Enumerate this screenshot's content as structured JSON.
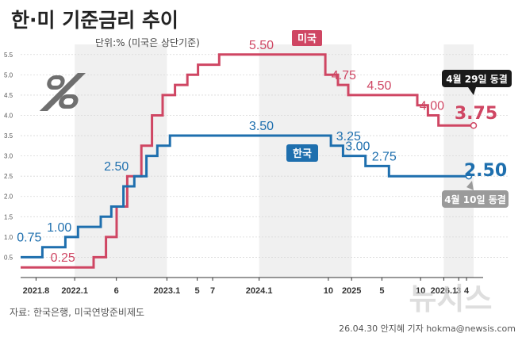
{
  "chart_data": {
    "type": "line",
    "step": true,
    "title": "한·미 기준금리 추이",
    "subtitle": "단위:% (미국은 상단기준)",
    "ylim": [
      0,
      5.75
    ],
    "y_ticks": [
      0.5,
      1.0,
      1.5,
      2.0,
      2.5,
      3.0,
      3.5,
      4.0,
      4.5,
      5.0,
      5.5
    ],
    "y_tick_labels": [
      "0.5",
      "1.0",
      "1.5",
      "2.0",
      "2.5",
      "3.0",
      "3.5",
      "4.0",
      "4.5",
      "5.0",
      "5.5"
    ],
    "x_ticks": [
      {
        "label": "2021.8",
        "date": "2021-08-01"
      },
      {
        "label": "2022.1",
        "date": "2022-01-01"
      },
      {
        "label": "6",
        "date": "2022-06-15"
      },
      {
        "label": "2023.1",
        "date": "2023-01-01"
      },
      {
        "label": "5",
        "date": "2023-05-01"
      },
      {
        "label": "7",
        "date": "2023-07-01"
      },
      {
        "label": "2024.1",
        "date": "2024-01-01"
      },
      {
        "label": "10",
        "date": "2024-10-01"
      },
      {
        "label": "2025",
        "date": "2025-01-01"
      },
      {
        "label": "5",
        "date": "2025-05-01"
      },
      {
        "label": "10",
        "date": "2025-10-01"
      },
      {
        "label": "2026.1",
        "date": "2026-01-01"
      },
      {
        "label": "3",
        "date": "2026-03-01"
      },
      {
        "label": "4",
        "date": "2026-04-01"
      }
    ],
    "series": [
      {
        "name": "미국",
        "color": "#cf4663",
        "points": [
          [
            "2021-06-01",
            0.25
          ],
          [
            "2022-03-17",
            0.5
          ],
          [
            "2022-05-05",
            1.0
          ],
          [
            "2022-06-16",
            1.75
          ],
          [
            "2022-07-28",
            2.5
          ],
          [
            "2022-09-22",
            3.25
          ],
          [
            "2022-11-03",
            4.0
          ],
          [
            "2022-12-15",
            4.5
          ],
          [
            "2023-02-02",
            4.75
          ],
          [
            "2023-03-23",
            5.0
          ],
          [
            "2023-05-04",
            5.25
          ],
          [
            "2023-07-27",
            5.5
          ],
          [
            "2024-09-19",
            5.0
          ],
          [
            "2024-11-08",
            4.75
          ],
          [
            "2024-12-19",
            4.5
          ],
          [
            "2025-09-18",
            4.25
          ],
          [
            "2025-10-30",
            4.0
          ],
          [
            "2025-12-11",
            3.75
          ],
          [
            "2026-04-29",
            3.75
          ]
        ],
        "labels": [
          {
            "date": "2021-11-15",
            "value": 0.25,
            "text": "0.25"
          },
          {
            "date": "2024-01-10",
            "value": 5.5,
            "text": "5.50"
          },
          {
            "date": "2024-12-01",
            "value": 4.75,
            "text": "4.75"
          },
          {
            "date": "2025-04-20",
            "value": 4.5,
            "text": "4.50"
          },
          {
            "date": "2025-11-15",
            "value": 4.0,
            "text": "4.00"
          }
        ],
        "final_label": "3.75",
        "note": "4월 29일 동결"
      },
      {
        "name": "한국",
        "color": "#1e6fae",
        "points": [
          [
            "2021-06-01",
            0.5
          ],
          [
            "2021-08-26",
            0.75
          ],
          [
            "2021-11-25",
            1.0
          ],
          [
            "2022-01-14",
            1.25
          ],
          [
            "2022-04-14",
            1.5
          ],
          [
            "2022-05-26",
            1.75
          ],
          [
            "2022-07-13",
            2.25
          ],
          [
            "2022-08-25",
            2.5
          ],
          [
            "2022-10-12",
            3.0
          ],
          [
            "2022-11-24",
            3.25
          ],
          [
            "2023-01-13",
            3.5
          ],
          [
            "2024-10-11",
            3.25
          ],
          [
            "2024-11-28",
            3.0
          ],
          [
            "2025-02-25",
            2.75
          ],
          [
            "2025-05-29",
            2.5
          ],
          [
            "2026-04-10",
            2.5
          ]
        ],
        "labels": [
          {
            "date": "2021-07-05",
            "value": 0.75,
            "text": "0.75"
          },
          {
            "date": "2021-11-01",
            "value": 1.0,
            "text": "1.00"
          },
          {
            "date": "2022-06-15",
            "value": 2.5,
            "text": "2.50"
          },
          {
            "date": "2024-01-10",
            "value": 3.5,
            "text": "3.50"
          },
          {
            "date": "2024-12-20",
            "value": 3.25,
            "text": "3.25"
          },
          {
            "date": "2025-01-25",
            "value": 3.0,
            "text": "3.00"
          },
          {
            "date": "2025-05-10",
            "value": 2.75,
            "text": "2.75"
          }
        ],
        "final_label": "2.50",
        "note": "4월 10일 동결"
      }
    ],
    "source": "자료: 한국은행, 미국연방준비제도",
    "byline": "26.04.30 안지혜 기자 hokma@newsis.com",
    "watermark": "뉴시스"
  }
}
